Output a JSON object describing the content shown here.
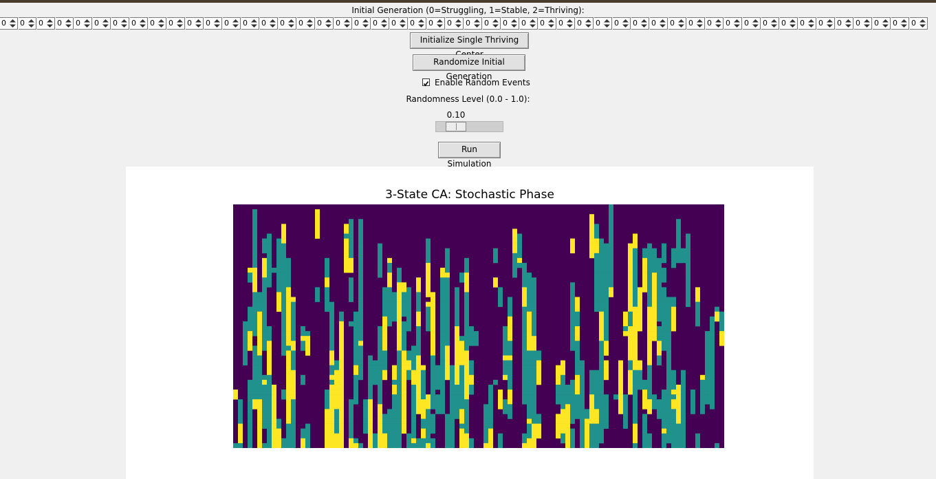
{
  "header": {
    "title": "Initial Generation (0=Struggling, 1=Stable, 2=Thriving):"
  },
  "initial_generation": {
    "count": 50,
    "value": "0"
  },
  "buttons": {
    "init_center": "Initialize Single Thriving Center",
    "randomize": "Randomize Initial Generation",
    "run": "Run Simulation"
  },
  "random_events": {
    "label": "Enable Random Events",
    "checked": true
  },
  "randomness": {
    "label": "Randomness Level (0.0 - 1.0):",
    "value": "0.10",
    "level": 0.1
  },
  "plot": {
    "title": "3-State CA: Stochastic Phase",
    "colormap": {
      "0": "#440154",
      "1": "#21918c",
      "2": "#fde725"
    }
  }
}
